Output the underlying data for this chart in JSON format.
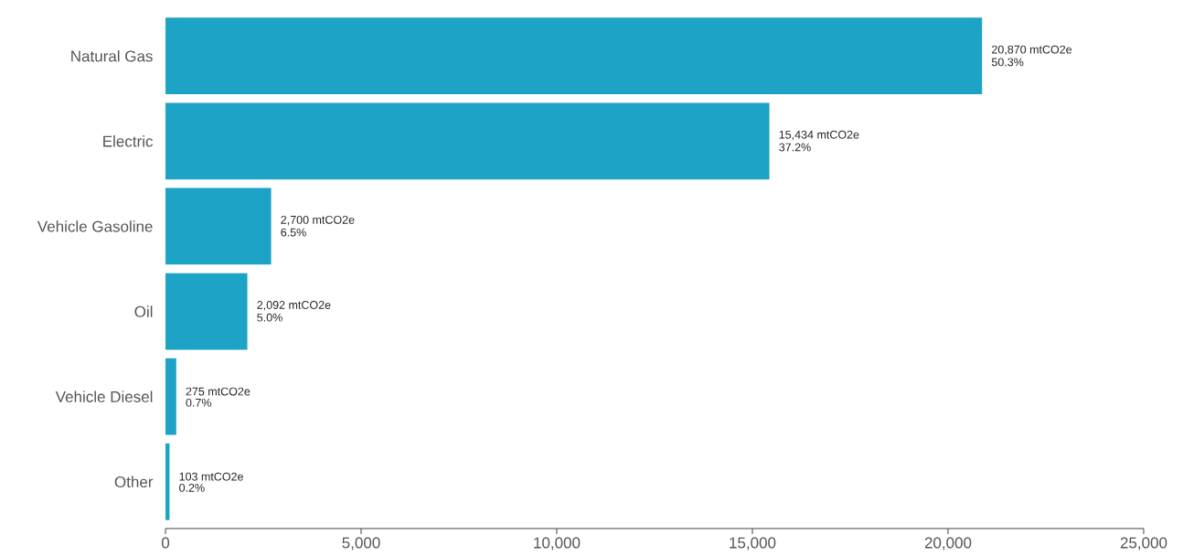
{
  "chart_data": {
    "type": "bar",
    "orientation": "horizontal",
    "color": "#1ca3c6",
    "categories": [
      "Natural Gas",
      "Electric",
      "Vehicle Gasoline",
      "Oil",
      "Vehicle Diesel",
      "Other"
    ],
    "values": [
      20870,
      15434,
      2700,
      2092,
      275,
      103
    ],
    "value_labels": [
      "20,870 mtCO2e",
      "15,434 mtCO2e",
      "2,700 mtCO2e",
      "2,092 mtCO2e",
      "275 mtCO2e",
      "103 mtCO2e"
    ],
    "annotations": [
      {
        "text": "50.3%",
        "x": 20870,
        "y": "Natural Gas"
      },
      {
        "text": "37.2%",
        "x": 15434,
        "y": "Electric"
      },
      {
        "text": "6.5%",
        "x": 2700,
        "y": "Vehicle Gasoline"
      },
      {
        "text": "5.0%",
        "x": 2092,
        "y": "Oil"
      },
      {
        "text": "0.7%",
        "x": 275,
        "y": "Vehicle Diesel"
      },
      {
        "text": "0.2%",
        "x": 103,
        "y": "Other"
      }
    ],
    "xlim": [
      0,
      25000
    ],
    "xticks": [
      0,
      {
        "value": 5000,
        "label": "5,000"
      },
      {
        "value": 10000,
        "label": "10,000"
      },
      {
        "value": 15000,
        "label": "15,000"
      },
      {
        "value": 20000,
        "label": "20,000"
      },
      {
        "value": 25000,
        "label": "25,000"
      }
    ]
  }
}
